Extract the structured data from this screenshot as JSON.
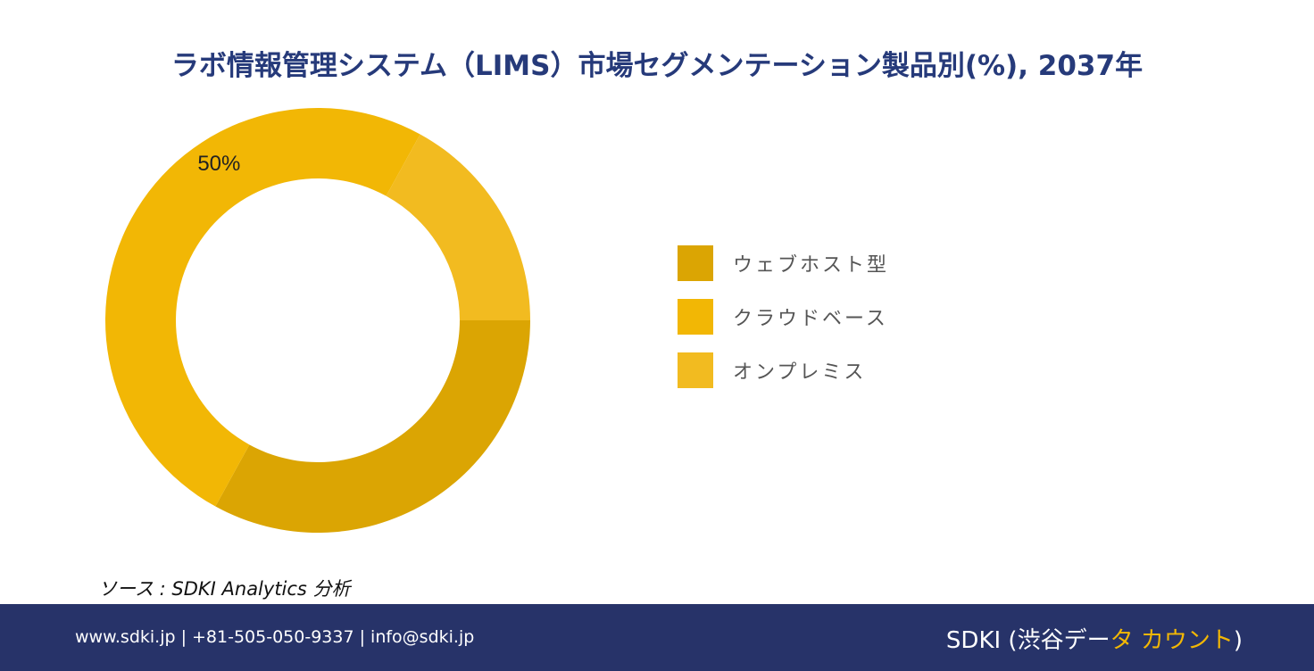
{
  "title": "ラボ情報管理システム（LIMS）市場セグメンテーション製品別(%), 2037年",
  "chart_data": {
    "type": "pie",
    "style": "donut",
    "categories": [
      "ウェブホスト型",
      "クラウドベース",
      "オンプレミス"
    ],
    "values": [
      33,
      50,
      17
    ],
    "colors": [
      "#dba503",
      "#f2b705",
      "#f2bb20"
    ],
    "data_labels": [
      "",
      "50%",
      ""
    ],
    "legend_position": "right"
  },
  "source": "ソース : SDKI Analytics 分析",
  "footer": {
    "contact": "www.sdki.jp | +81-505-050-9337 | info@sdki.jp",
    "brand_prefix": "SDKI (渋谷デー",
    "brand_accent": "タ カウント",
    "brand_suffix": ")"
  }
}
